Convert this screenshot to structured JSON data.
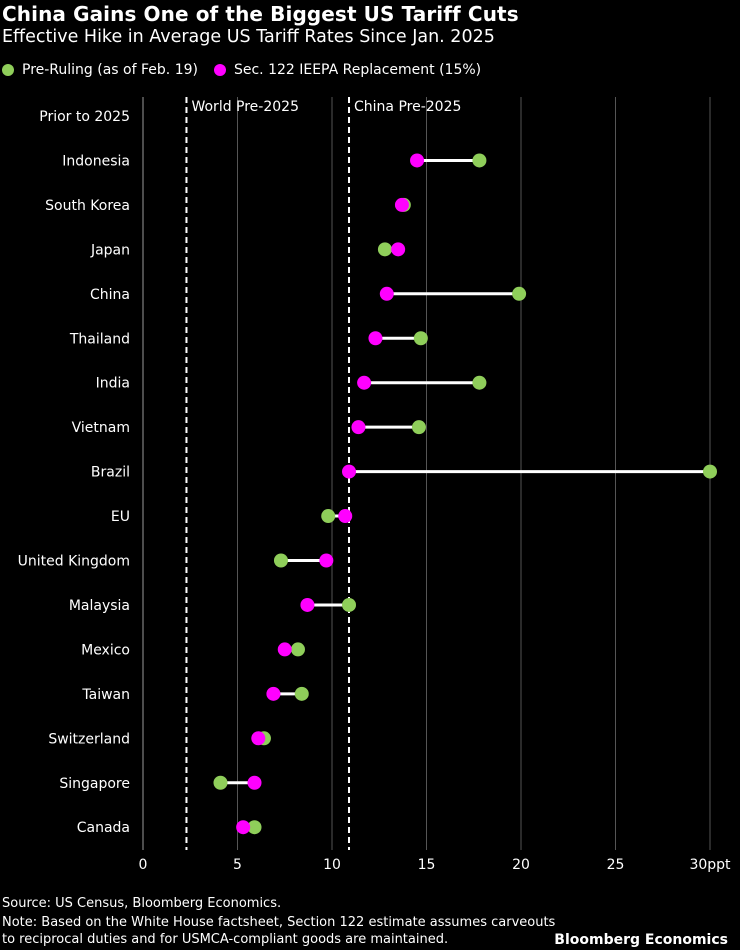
{
  "header": {
    "title": "China Gains One of the Biggest US Tariff Cuts",
    "subtitle": "Effective Hike in Average US Tariff Rates Since Jan. 2025"
  },
  "footer": {
    "source": "Source: US Census, Bloomberg Economics.",
    "note_line1": "Note: Based on the White House factsheet, Section 122 estimate assumes carveouts",
    "note_line2": "to reciprocal duties and for USMCA-compliant goods are maintained.",
    "brand": "Bloomberg Economics"
  },
  "colors": {
    "background": "#000000",
    "pre_ruling": "#8fce5a",
    "replacement": "#ff00ff",
    "connector": "#ffffff",
    "gridline": "#555555"
  },
  "chart_data": {
    "type": "dumbbell",
    "xlim": [
      0,
      30
    ],
    "x_ticks": [
      {
        "value": 0,
        "label": "0"
      },
      {
        "value": 5,
        "label": "5"
      },
      {
        "value": 10,
        "label": "10"
      },
      {
        "value": 15,
        "label": "15"
      },
      {
        "value": 20,
        "label": "20"
      },
      {
        "value": 25,
        "label": "25"
      },
      {
        "value": 30,
        "label": "30ppt"
      }
    ],
    "grid": true,
    "legend_position": "top-left",
    "series": [
      {
        "key": "pre",
        "name": "Pre-Ruling (as of Feb. 19)",
        "color": "#8fce5a"
      },
      {
        "key": "rep",
        "name": "Sec. 122 IEEPA Replacement (15%)",
        "color": "#ff00ff"
      }
    ],
    "reference_lines": [
      {
        "label": "World Pre-2025",
        "value": 2.3
      },
      {
        "label": "China Pre-2025",
        "value": 10.9
      }
    ],
    "categories": [
      {
        "label": "Prior to 2025",
        "pre": null,
        "rep": null
      },
      {
        "label": "Indonesia",
        "pre": 17.8,
        "rep": 14.5
      },
      {
        "label": "South Korea",
        "pre": 13.8,
        "rep": 13.7
      },
      {
        "label": "Japan",
        "pre": 12.8,
        "rep": 13.5
      },
      {
        "label": "China",
        "pre": 19.9,
        "rep": 12.9
      },
      {
        "label": "Thailand",
        "pre": 14.7,
        "rep": 12.3
      },
      {
        "label": "India",
        "pre": 17.8,
        "rep": 11.7
      },
      {
        "label": "Vietnam",
        "pre": 14.6,
        "rep": 11.4
      },
      {
        "label": "Brazil",
        "pre": 30.0,
        "rep": 10.9
      },
      {
        "label": "EU",
        "pre": 9.8,
        "rep": 10.7
      },
      {
        "label": "United Kingdom",
        "pre": 7.3,
        "rep": 9.7
      },
      {
        "label": "Malaysia",
        "pre": 10.9,
        "rep": 8.7
      },
      {
        "label": "Mexico",
        "pre": 8.2,
        "rep": 7.5
      },
      {
        "label": "Taiwan",
        "pre": 8.4,
        "rep": 6.9
      },
      {
        "label": "Switzerland",
        "pre": 6.4,
        "rep": 6.1
      },
      {
        "label": "Singapore",
        "pre": 4.1,
        "rep": 5.9
      },
      {
        "label": "Canada",
        "pre": 5.9,
        "rep": 5.3
      }
    ]
  }
}
